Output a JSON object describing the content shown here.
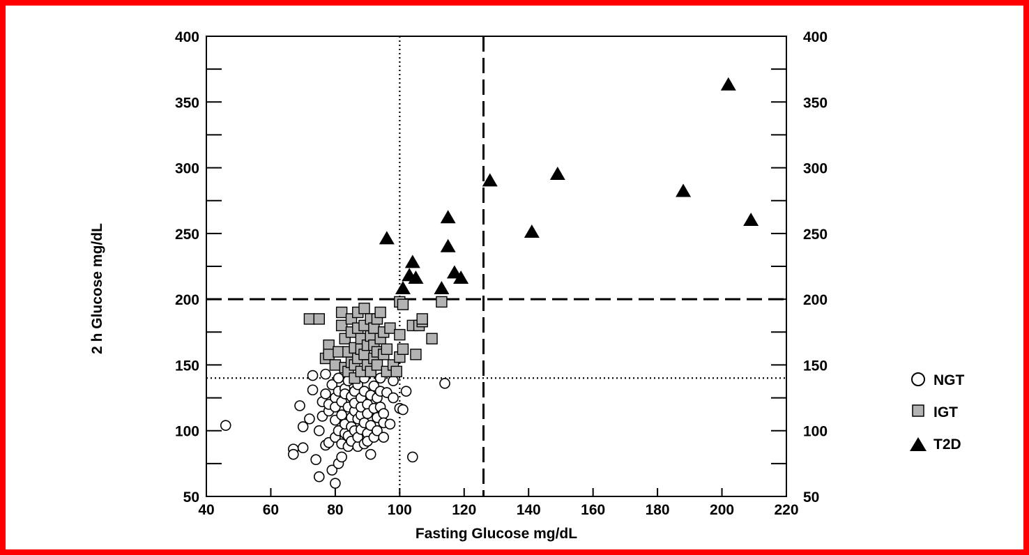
{
  "border_color": "#ff0000",
  "chart_data": {
    "type": "scatter",
    "title": "",
    "xlabel": "Fasting Glucose mg/dL",
    "ylabel": "2 h Glucose mg/dL",
    "xlim": [
      40,
      220
    ],
    "ylim": [
      50,
      400
    ],
    "x_ticks": [
      40,
      60,
      80,
      100,
      120,
      140,
      160,
      180,
      200,
      220
    ],
    "y_ticks": [
      50,
      100,
      150,
      200,
      250,
      300,
      350,
      400
    ],
    "y_ticks_right": [
      50,
      100,
      150,
      200,
      250,
      300,
      350,
      400
    ],
    "grid": false,
    "legend_position": "right",
    "reference_lines": [
      {
        "orientation": "vertical",
        "value": 100,
        "style": "dotted"
      },
      {
        "orientation": "vertical",
        "value": 126,
        "style": "dashed"
      },
      {
        "orientation": "horizontal",
        "value": 140,
        "style": "dotted"
      },
      {
        "orientation": "horizontal",
        "value": 200,
        "style": "dashed"
      }
    ],
    "series": [
      {
        "name": "NGT",
        "marker": "open-circle",
        "color": "#000000",
        "points": [
          [
            46,
            104
          ],
          [
            67,
            86
          ],
          [
            67,
            82
          ],
          [
            69,
            119
          ],
          [
            70,
            87
          ],
          [
            70,
            103
          ],
          [
            72,
            109
          ],
          [
            73,
            131
          ],
          [
            73,
            142
          ],
          [
            74,
            78
          ],
          [
            75,
            65
          ],
          [
            75,
            100
          ],
          [
            76,
            122
          ],
          [
            76,
            111
          ],
          [
            77,
            143
          ],
          [
            77,
            89
          ],
          [
            77,
            128
          ],
          [
            78,
            91
          ],
          [
            78,
            115
          ],
          [
            78,
            120
          ],
          [
            79,
            70
          ],
          [
            79,
            135
          ],
          [
            80,
            60
          ],
          [
            80,
            95
          ],
          [
            80,
            125
          ],
          [
            80,
            108
          ],
          [
            80,
            118
          ],
          [
            81,
            75
          ],
          [
            81,
            130
          ],
          [
            81,
            140
          ],
          [
            81,
            100
          ],
          [
            82,
            80
          ],
          [
            82,
            90
          ],
          [
            82,
            112
          ],
          [
            82,
            122
          ],
          [
            83,
            132
          ],
          [
            83,
            98
          ],
          [
            83,
            105
          ],
          [
            83,
            128
          ],
          [
            84,
            88
          ],
          [
            84,
            118
          ],
          [
            84,
            96
          ],
          [
            84,
            138
          ],
          [
            85,
            110
          ],
          [
            85,
            126
          ],
          [
            85,
            103
          ],
          [
            85,
            92
          ],
          [
            86,
            115
          ],
          [
            86,
            130
          ],
          [
            86,
            100
          ],
          [
            86,
            121
          ],
          [
            87,
            88
          ],
          [
            87,
            109
          ],
          [
            87,
            135
          ],
          [
            87,
            95
          ],
          [
            88,
            125
          ],
          [
            88,
            112
          ],
          [
            88,
            101
          ],
          [
            88,
            118
          ],
          [
            89,
            90
          ],
          [
            89,
            130
          ],
          [
            89,
            106
          ],
          [
            89,
            140
          ],
          [
            90,
            98
          ],
          [
            90,
            120
          ],
          [
            90,
            113
          ],
          [
            90,
            92
          ],
          [
            91,
            82
          ],
          [
            91,
            127
          ],
          [
            91,
            104
          ],
          [
            92,
            134
          ],
          [
            92,
            117
          ],
          [
            92,
            95
          ],
          [
            93,
            110
          ],
          [
            93,
            125
          ],
          [
            93,
            100
          ],
          [
            94,
            140
          ],
          [
            94,
            130
          ],
          [
            94,
            118
          ],
          [
            95,
            113
          ],
          [
            95,
            106
          ],
          [
            95,
            95
          ],
          [
            96,
            129
          ],
          [
            97,
            105
          ],
          [
            98,
            138
          ],
          [
            98,
            125
          ],
          [
            100,
            117
          ],
          [
            101,
            116
          ],
          [
            102,
            130
          ],
          [
            104,
            80
          ],
          [
            114,
            136
          ]
        ]
      },
      {
        "name": "IGT",
        "marker": "square",
        "color": "#b3b3b3",
        "points": [
          [
            72,
            185
          ],
          [
            75,
            185
          ],
          [
            77,
            155
          ],
          [
            78,
            165
          ],
          [
            78,
            158
          ],
          [
            80,
            150
          ],
          [
            81,
            160
          ],
          [
            82,
            190
          ],
          [
            82,
            180
          ],
          [
            83,
            170
          ],
          [
            83,
            148
          ],
          [
            84,
            160
          ],
          [
            84,
            145
          ],
          [
            85,
            185
          ],
          [
            85,
            175
          ],
          [
            85,
            152
          ],
          [
            86,
            140
          ],
          [
            86,
            163
          ],
          [
            86,
            150
          ],
          [
            87,
            178
          ],
          [
            87,
            190
          ],
          [
            87,
            155
          ],
          [
            88,
            170
          ],
          [
            88,
            145
          ],
          [
            88,
            162
          ],
          [
            89,
            193
          ],
          [
            89,
            180
          ],
          [
            89,
            158
          ],
          [
            90,
            150
          ],
          [
            90,
            165
          ],
          [
            91,
            172
          ],
          [
            91,
            185
          ],
          [
            91,
            145
          ],
          [
            92,
            155
          ],
          [
            92,
            178
          ],
          [
            92,
            165
          ],
          [
            93,
            185
          ],
          [
            93,
            160
          ],
          [
            93,
            150
          ],
          [
            94,
            170
          ],
          [
            94,
            190
          ],
          [
            95,
            158
          ],
          [
            95,
            175
          ],
          [
            96,
            145
          ],
          [
            96,
            162
          ],
          [
            97,
            178
          ],
          [
            98,
            150
          ],
          [
            99,
            145
          ],
          [
            100,
            173
          ],
          [
            100,
            156
          ],
          [
            100,
            198
          ],
          [
            101,
            196
          ],
          [
            101,
            162
          ],
          [
            104,
            180
          ],
          [
            105,
            158
          ],
          [
            106,
            180
          ],
          [
            107,
            183
          ],
          [
            107,
            185
          ],
          [
            110,
            170
          ],
          [
            113,
            198
          ]
        ]
      },
      {
        "name": "T2D",
        "marker": "filled-triangle",
        "color": "#000000",
        "points": [
          [
            96,
            246
          ],
          [
            101,
            208
          ],
          [
            103,
            218
          ],
          [
            104,
            228
          ],
          [
            105,
            216
          ],
          [
            113,
            208
          ],
          [
            115,
            262
          ],
          [
            115,
            240
          ],
          [
            117,
            220
          ],
          [
            119,
            216
          ],
          [
            128,
            290
          ],
          [
            141,
            251
          ],
          [
            149,
            295
          ],
          [
            188,
            282
          ],
          [
            202,
            363
          ],
          [
            209,
            260
          ]
        ]
      }
    ]
  }
}
